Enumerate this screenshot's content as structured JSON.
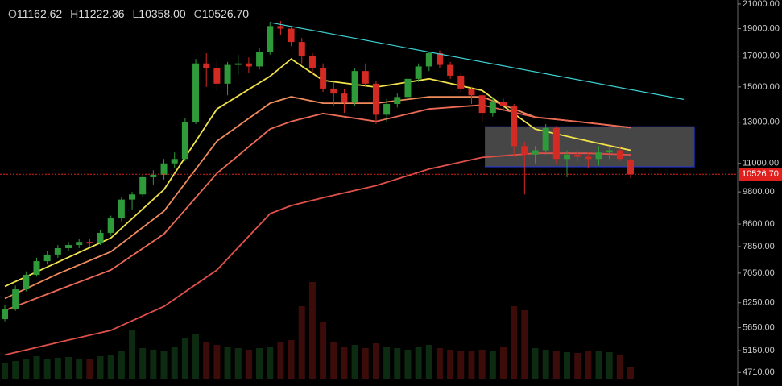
{
  "chart_data": {
    "type": "candlestick",
    "header": [
      {
        "label": "O",
        "text": "11162.62"
      },
      {
        "label": "H",
        "text": "11222.36"
      },
      {
        "label": "L",
        "text": "10358.00"
      },
      {
        "label": "C",
        "text": "10526.70"
      }
    ],
    "log_y": true,
    "ylim": [
      4460,
      21340
    ],
    "yticks": [
      {
        "value": 21000,
        "label": "21000.00"
      },
      {
        "value": 19000,
        "label": "19000.00"
      },
      {
        "value": 17000,
        "label": "17000.00"
      },
      {
        "value": 15000,
        "label": "15000.00"
      },
      {
        "value": 13000,
        "label": "13000.00"
      },
      {
        "value": 11000,
        "label": "11000.00"
      },
      {
        "value": 9800,
        "label": "9800.00"
      },
      {
        "value": 8600,
        "label": "8600.00"
      },
      {
        "value": 7850,
        "label": "7850.00"
      },
      {
        "value": 7050,
        "label": "7050.00"
      },
      {
        "value": 6250,
        "label": "6250.00"
      },
      {
        "value": 5650,
        "label": "5650.00"
      },
      {
        "value": 5150,
        "label": "5150.00"
      },
      {
        "value": 4710,
        "label": "4710.00"
      }
    ],
    "last_price": {
      "value": 10526.7,
      "label": "10526.70",
      "color": "#e0201c"
    },
    "up_color": "#2f9a3a",
    "down_color": "#d42a24",
    "candles": [
      [
        5850,
        6200,
        5800,
        6100
      ],
      [
        6100,
        6700,
        6050,
        6600
      ],
      [
        6600,
        7100,
        6550,
        7000
      ],
      [
        7000,
        7500,
        6950,
        7400
      ],
      [
        7400,
        7700,
        7300,
        7600
      ],
      [
        7600,
        7900,
        7500,
        7800
      ],
      [
        7800,
        8000,
        7700,
        7900
      ],
      [
        7900,
        8100,
        7800,
        8000
      ],
      [
        8000,
        8100,
        7850,
        7950
      ],
      [
        7950,
        8400,
        7900,
        8300
      ],
      [
        8300,
        8900,
        8200,
        8800
      ],
      [
        8800,
        9600,
        8700,
        9500
      ],
      [
        9500,
        9800,
        9100,
        9700
      ],
      [
        9700,
        10500,
        9600,
        10400
      ],
      [
        10400,
        10700,
        10100,
        10500
      ],
      [
        10500,
        11200,
        10300,
        11000
      ],
      [
        11000,
        11500,
        10800,
        11200
      ],
      [
        11200,
        13200,
        11100,
        13000
      ],
      [
        13000,
        16800,
        12900,
        16500
      ],
      [
        16500,
        17200,
        15000,
        16200
      ],
      [
        16200,
        16700,
        14800,
        15200
      ],
      [
        15200,
        16600,
        14500,
        16400
      ],
      [
        16400,
        17100,
        15800,
        16500
      ],
      [
        16500,
        16900,
        15900,
        16300
      ],
      [
        16300,
        17600,
        16100,
        17300
      ],
      [
        17300,
        19500,
        17100,
        19200
      ],
      [
        19200,
        19600,
        18500,
        19000
      ],
      [
        19000,
        19100,
        17700,
        18000
      ],
      [
        18000,
        18300,
        16500,
        17000
      ],
      [
        17000,
        17200,
        15800,
        16200
      ],
      [
        16200,
        16500,
        14700,
        14900
      ],
      [
        14900,
        15300,
        13900,
        14600
      ],
      [
        14600,
        14900,
        13500,
        14100
      ],
      [
        14100,
        16200,
        13900,
        16000
      ],
      [
        16000,
        16500,
        15000,
        15200
      ],
      [
        15200,
        15400,
        12900,
        13400
      ],
      [
        13400,
        14300,
        13000,
        14000
      ],
      [
        14000,
        14600,
        13800,
        14400
      ],
      [
        14400,
        15700,
        14200,
        15500
      ],
      [
        15500,
        16500,
        15300,
        16300
      ],
      [
        16300,
        17300,
        16000,
        17200
      ],
      [
        17200,
        17400,
        16200,
        16400
      ],
      [
        16400,
        16600,
        15500,
        15700
      ],
      [
        15700,
        15900,
        14600,
        14900
      ],
      [
        14900,
        15000,
        14000,
        14500
      ],
      [
        14500,
        14700,
        13000,
        13500
      ],
      [
        13500,
        14400,
        13300,
        14100
      ],
      [
        14100,
        14300,
        13600,
        13900
      ],
      [
        13900,
        14000,
        11300,
        11800
      ],
      [
        11800,
        12000,
        9700,
        11400
      ],
      [
        11400,
        11800,
        11000,
        11600
      ],
      [
        11600,
        12900,
        11400,
        12700
      ],
      [
        12700,
        12800,
        11000,
        11200
      ],
      [
        11200,
        11600,
        10400,
        11400
      ],
      [
        11400,
        11600,
        11100,
        11300
      ],
      [
        11300,
        11500,
        10800,
        11200
      ],
      [
        11200,
        11800,
        10900,
        11500
      ],
      [
        11500,
        11800,
        11200,
        11600
      ],
      [
        11600,
        11800,
        11100,
        11200
      ],
      [
        11162.62,
        11222.36,
        10358,
        10526.7
      ]
    ],
    "volume": [
      20,
      22,
      25,
      28,
      24,
      26,
      27,
      25,
      24,
      28,
      30,
      35,
      60,
      38,
      36,
      34,
      40,
      50,
      55,
      45,
      42,
      40,
      38,
      36,
      38,
      40,
      45,
      48,
      90,
      120,
      70,
      45,
      40,
      42,
      38,
      44,
      40,
      38,
      36,
      40,
      42,
      38,
      36,
      35,
      34,
      36,
      35,
      40,
      90,
      85,
      38,
      36,
      34,
      33,
      32,
      35,
      34,
      33,
      30,
      15
    ],
    "volume_lim": [
      0,
      130
    ],
    "ma_x": [
      0,
      5,
      10,
      15,
      20,
      25,
      27,
      30,
      35,
      40,
      45,
      50,
      55,
      59
    ],
    "moving_averages": [
      {
        "color": "#f2e34c",
        "values": [
          6680,
          7370,
          8130,
          9890,
          13720,
          15660,
          16800,
          15400,
          14990,
          15500,
          14790,
          12640,
          12040,
          11600
        ]
      },
      {
        "color": "#f08a5d",
        "values": [
          6360,
          7030,
          7690,
          9060,
          12040,
          14040,
          14410,
          14040,
          14040,
          14410,
          14410,
          13270,
          12970,
          12720
        ]
      },
      {
        "color": "#ec6a55",
        "values": [
          6060,
          6580,
          7140,
          8260,
          10570,
          12640,
          13040,
          13470,
          13040,
          13720,
          13940,
          13270,
          12970,
          12720
        ]
      },
      {
        "color": "#e0504a",
        "values": [
          5060,
          5320,
          5590,
          6160,
          7140,
          8970,
          9270,
          9570,
          10050,
          10750,
          11270,
          11460,
          11460,
          11390
        ]
      }
    ],
    "trend_line": {
      "color": "#3fd0d0",
      "x": [
        25,
        64
      ],
      "values": [
        19480,
        14260
      ]
    },
    "box": {
      "x": [
        45.3,
        65
      ],
      "values": [
        12760,
        10850
      ]
    }
  }
}
